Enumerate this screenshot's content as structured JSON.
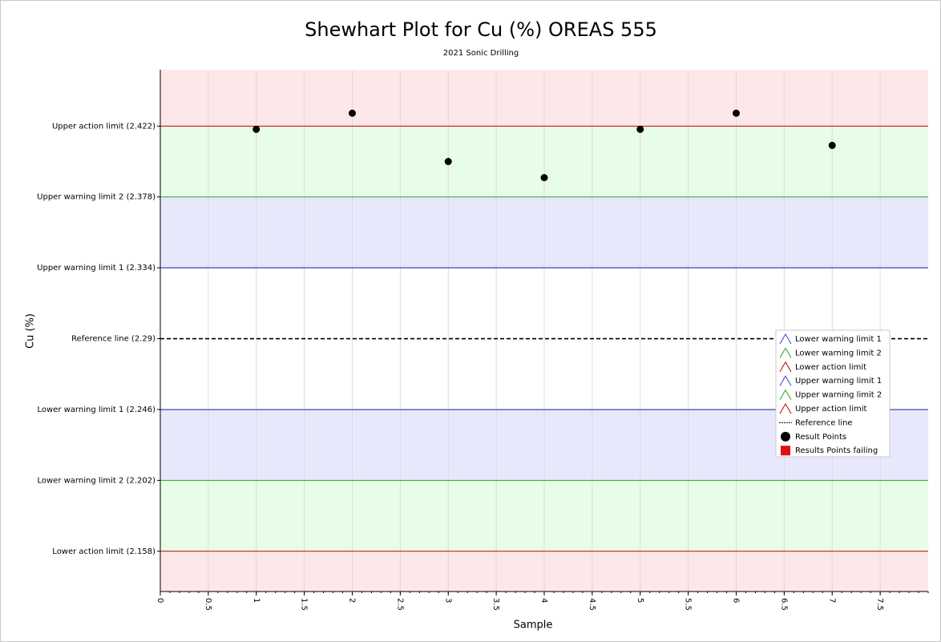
{
  "chart_data": {
    "type": "scatter",
    "title": "Shewhart Plot for Cu (%) OREAS 555",
    "subtitle": "2021 Sonic Drilling",
    "x_label": "Sample",
    "y_label": "Cu (%)",
    "xlim": [
      0,
      8
    ],
    "ylim": [
      2.133,
      2.457
    ],
    "xticks": [
      0,
      0.5,
      1,
      1.5,
      2,
      2.5,
      3,
      3.5,
      4,
      4.5,
      5,
      5.5,
      6,
      6.5,
      7,
      7.5
    ],
    "yticks": [
      {
        "value": 2.422,
        "label": "Upper action limit (2.422)"
      },
      {
        "value": 2.378,
        "label": "Upper warning limit 2 (2.378)"
      },
      {
        "value": 2.334,
        "label": "Upper warning limit 1 (2.334)"
      },
      {
        "value": 2.29,
        "label": "Reference line (2.29)"
      },
      {
        "value": 2.246,
        "label": "Lower warning limit 1 (2.246)"
      },
      {
        "value": 2.202,
        "label": "Lower warning limit 2 (2.202)"
      },
      {
        "value": 2.158,
        "label": "Lower action limit (2.158)"
      }
    ],
    "grid": true,
    "reference": {
      "value": 2.29,
      "color": "#000000"
    },
    "limits": [
      {
        "value": 2.334,
        "color": "#1a1a8c",
        "band": "#e8e8fd"
      },
      {
        "value": 2.378,
        "color": "#2ca02c",
        "band": "#e8fde8"
      },
      {
        "value": 2.422,
        "color": "#c00000",
        "band": "#fde7e8"
      },
      {
        "value": 2.246,
        "color": "#1a1a8c",
        "band": "#e8e8fd"
      },
      {
        "value": 2.202,
        "color": "#2ca02c",
        "band": "#e8fde8"
      },
      {
        "value": 2.158,
        "color": "#c00000",
        "band": "#fde7e8"
      }
    ],
    "series": [
      {
        "color": "#000000",
        "x": [
          1,
          2,
          3,
          4,
          5,
          6,
          7
        ],
        "values": [
          2.42,
          2.43,
          2.4,
          2.39,
          2.42,
          2.43,
          2.41
        ]
      }
    ],
    "legend_position": "right",
    "legend": [
      {
        "name": "Lower warning limit 1",
        "symbol": "triangle",
        "color": "#3c3cd0"
      },
      {
        "name": "Lower warning limit 2",
        "symbol": "triangle",
        "color": "#2ca02c"
      },
      {
        "name": "Lower action limit",
        "symbol": "triangle",
        "color": "#c00000"
      },
      {
        "name": "Upper warning limit 1",
        "symbol": "triangle",
        "color": "#3c3cd0"
      },
      {
        "name": "Upper warning limit 2",
        "symbol": "triangle",
        "color": "#2ca02c"
      },
      {
        "name": "Upper action limit",
        "symbol": "triangle",
        "color": "#c00000"
      },
      {
        "name": "Reference line",
        "symbol": "dash",
        "color": "#000000"
      },
      {
        "name": "Result Points",
        "symbol": "circle",
        "color": "#000000"
      },
      {
        "name": "Results Points failing",
        "symbol": "square",
        "color": "#e01010"
      }
    ]
  }
}
